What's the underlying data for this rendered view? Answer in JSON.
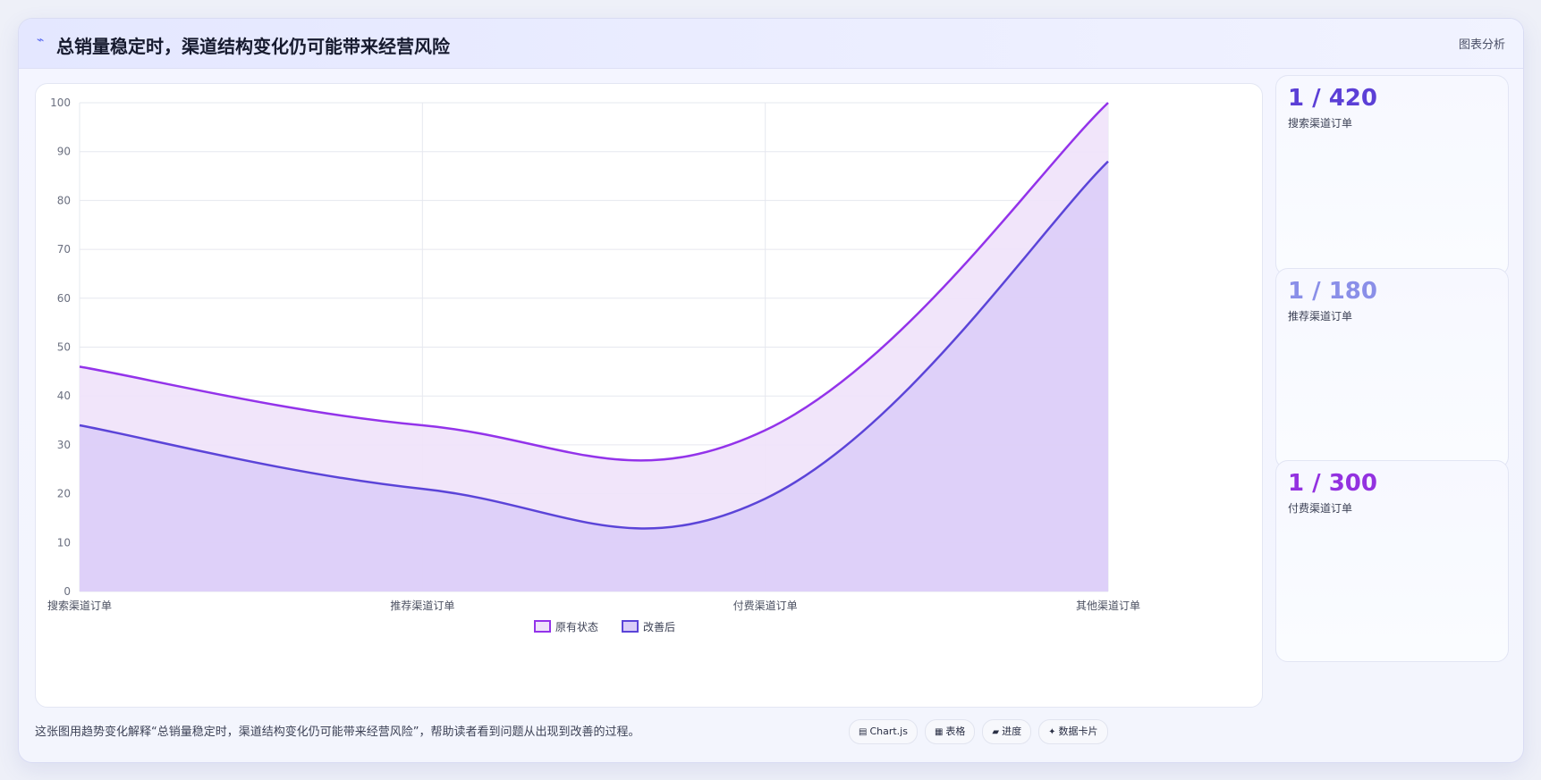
{
  "header": {
    "title": "总销量稳定时，渠道结构变化仍可能带来经营风险",
    "tag": "图表分析"
  },
  "chart_data": {
    "type": "area",
    "categories": [
      "搜索渠道订单",
      "推荐渠道订单",
      "付费渠道订单",
      "其他渠道订单"
    ],
    "series": [
      {
        "name": "原有状态",
        "values": [
          46,
          34,
          33,
          100
        ],
        "color": "#9333ea",
        "fill": "#efe2fa"
      },
      {
        "name": "改善后",
        "values": [
          34,
          21,
          19,
          88
        ],
        "color": "#5b44d8",
        "fill": "#dacdf8"
      }
    ],
    "ylim": [
      0,
      100
    ],
    "yticks": [
      0,
      10,
      20,
      30,
      40,
      50,
      60,
      70,
      80,
      90,
      100
    ],
    "grid": true,
    "legend_position": "bottom"
  },
  "stats": [
    {
      "value": "1 / 420",
      "label": "搜索渠道订单",
      "color": "#5b3fd6"
    },
    {
      "value": "1 / 180",
      "label": "推荐渠道订单",
      "color": "#8a8fe8"
    },
    {
      "value": "1 / 300",
      "label": "付费渠道订单",
      "color": "#9332e0"
    }
  ],
  "footer": {
    "caption": "这张图用趋势变化解释“总销量稳定时，渠道结构变化仍可能带来经营风险”，帮助读者看到问题从出现到改善的过程。",
    "chips": [
      {
        "icon": "▤",
        "label": "Chart.js"
      },
      {
        "icon": "▦",
        "label": "表格"
      },
      {
        "icon": "▰",
        "label": "进度"
      },
      {
        "icon": "✦",
        "label": "数据卡片"
      }
    ]
  }
}
